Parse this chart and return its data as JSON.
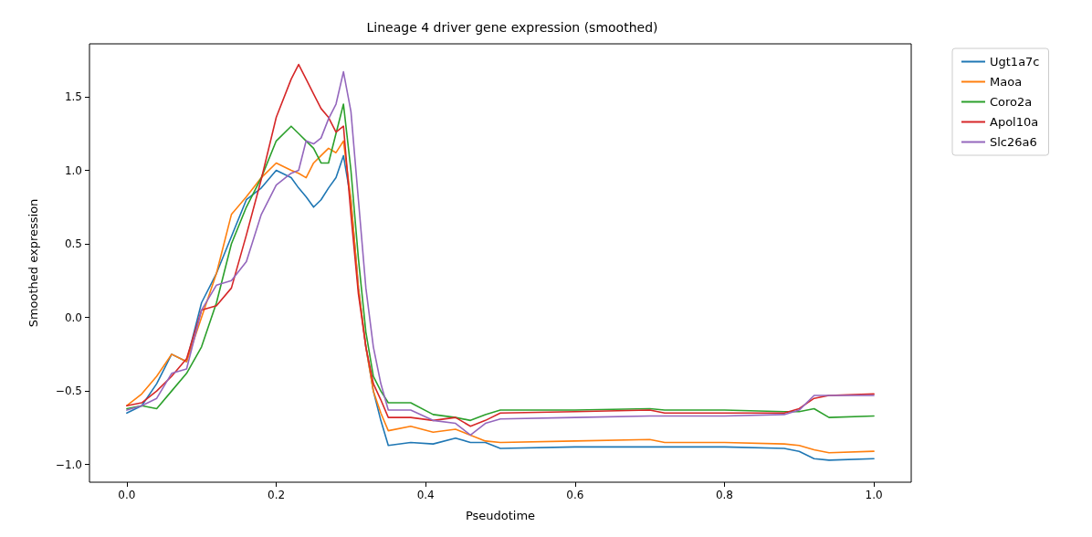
{
  "chart_data": {
    "type": "line",
    "title": "Lineage 4 driver gene expression (smoothed)",
    "xlabel": "Pseudotime",
    "ylabel": "Smoothed expression",
    "x": [
      0,
      0.02,
      0.04,
      0.06,
      0.08,
      0.1,
      0.12,
      0.14,
      0.16,
      0.18,
      0.2,
      0.22,
      0.23,
      0.24,
      0.25,
      0.26,
      0.27,
      0.28,
      0.29,
      0.3,
      0.31,
      0.32,
      0.33,
      0.34,
      0.35,
      0.38,
      0.41,
      0.44,
      0.46,
      0.48,
      0.5,
      0.6,
      0.7,
      0.72,
      0.8,
      0.88,
      0.9,
      0.92,
      0.94,
      1.0
    ],
    "series": [
      {
        "name": "Ugt1a7c",
        "color": "#1f77b4",
        "values": [
          -0.65,
          -0.6,
          -0.45,
          -0.25,
          -0.3,
          0.1,
          0.3,
          0.55,
          0.8,
          0.88,
          1.0,
          0.95,
          0.88,
          0.82,
          0.75,
          0.8,
          0.88,
          0.95,
          1.1,
          0.8,
          0.2,
          -0.2,
          -0.5,
          -0.7,
          -0.87,
          -0.85,
          -0.86,
          -0.82,
          -0.85,
          -0.85,
          -0.89,
          -0.88,
          -0.88,
          -0.88,
          -0.88,
          -0.89,
          -0.91,
          -0.96,
          -0.97,
          -0.96
        ]
      },
      {
        "name": "Maoa",
        "color": "#ff7f0e",
        "values": [
          -0.6,
          -0.52,
          -0.4,
          -0.25,
          -0.3,
          0.0,
          0.3,
          0.7,
          0.82,
          0.95,
          1.05,
          1.0,
          0.98,
          0.95,
          1.05,
          1.1,
          1.15,
          1.12,
          1.2,
          0.8,
          0.2,
          -0.2,
          -0.5,
          -0.65,
          -0.77,
          -0.74,
          -0.78,
          -0.76,
          -0.8,
          -0.84,
          -0.85,
          -0.84,
          -0.83,
          -0.85,
          -0.85,
          -0.86,
          -0.87,
          -0.9,
          -0.92,
          -0.91
        ]
      },
      {
        "name": "Coro2a",
        "color": "#2ca02c",
        "values": [
          -0.62,
          -0.6,
          -0.62,
          -0.5,
          -0.38,
          -0.2,
          0.1,
          0.5,
          0.75,
          0.95,
          1.2,
          1.3,
          1.25,
          1.2,
          1.15,
          1.05,
          1.05,
          1.25,
          1.45,
          1.0,
          0.4,
          -0.1,
          -0.4,
          -0.5,
          -0.58,
          -0.58,
          -0.66,
          -0.68,
          -0.7,
          -0.66,
          -0.63,
          -0.63,
          -0.62,
          -0.63,
          -0.63,
          -0.64,
          -0.64,
          -0.62,
          -0.68,
          -0.67
        ]
      },
      {
        "name": "Apol10a",
        "color": "#d62728",
        "values": [
          -0.6,
          -0.58,
          -0.5,
          -0.4,
          -0.28,
          0.05,
          0.08,
          0.2,
          0.56,
          0.94,
          1.36,
          1.62,
          1.72,
          1.62,
          1.52,
          1.42,
          1.36,
          1.26,
          1.3,
          0.7,
          0.16,
          -0.2,
          -0.45,
          -0.56,
          -0.68,
          -0.68,
          -0.7,
          -0.68,
          -0.74,
          -0.7,
          -0.65,
          -0.64,
          -0.63,
          -0.65,
          -0.65,
          -0.65,
          -0.62,
          -0.55,
          -0.53,
          -0.52
        ]
      },
      {
        "name": "Slc26a6",
        "color": "#9467bd",
        "values": [
          -0.63,
          -0.6,
          -0.55,
          -0.38,
          -0.35,
          0.05,
          0.22,
          0.25,
          0.38,
          0.7,
          0.9,
          0.98,
          1.0,
          1.2,
          1.18,
          1.22,
          1.35,
          1.45,
          1.67,
          1.4,
          0.8,
          0.2,
          -0.2,
          -0.45,
          -0.63,
          -0.63,
          -0.7,
          -0.72,
          -0.8,
          -0.72,
          -0.69,
          -0.68,
          -0.67,
          -0.67,
          -0.67,
          -0.66,
          -0.63,
          -0.53,
          -0.53,
          -0.53
        ]
      }
    ],
    "xlim": [
      -0.05,
      1.05
    ],
    "xticks": [
      {
        "value": 0,
        "label": "0.0"
      },
      {
        "value": 0.2,
        "label": "0.2"
      },
      {
        "value": 0.4,
        "label": "0.4"
      },
      {
        "value": 0.6,
        "label": "0.6"
      },
      {
        "value": 0.8,
        "label": "0.8"
      },
      {
        "value": 1,
        "label": "1.0"
      }
    ],
    "ylim": [
      -1.12,
      1.86
    ],
    "yticks": [
      {
        "value": -1,
        "label": "−1.0"
      },
      {
        "value": -0.5,
        "label": "−0.5"
      },
      {
        "value": 0,
        "label": "0.0"
      },
      {
        "value": 0.5,
        "label": "0.5"
      },
      {
        "value": 1,
        "label": "1.0"
      },
      {
        "value": 1.5,
        "label": "1.5"
      }
    ],
    "grid": false,
    "legend": "top right",
    "marker": "none",
    "line_style": "solid"
  }
}
